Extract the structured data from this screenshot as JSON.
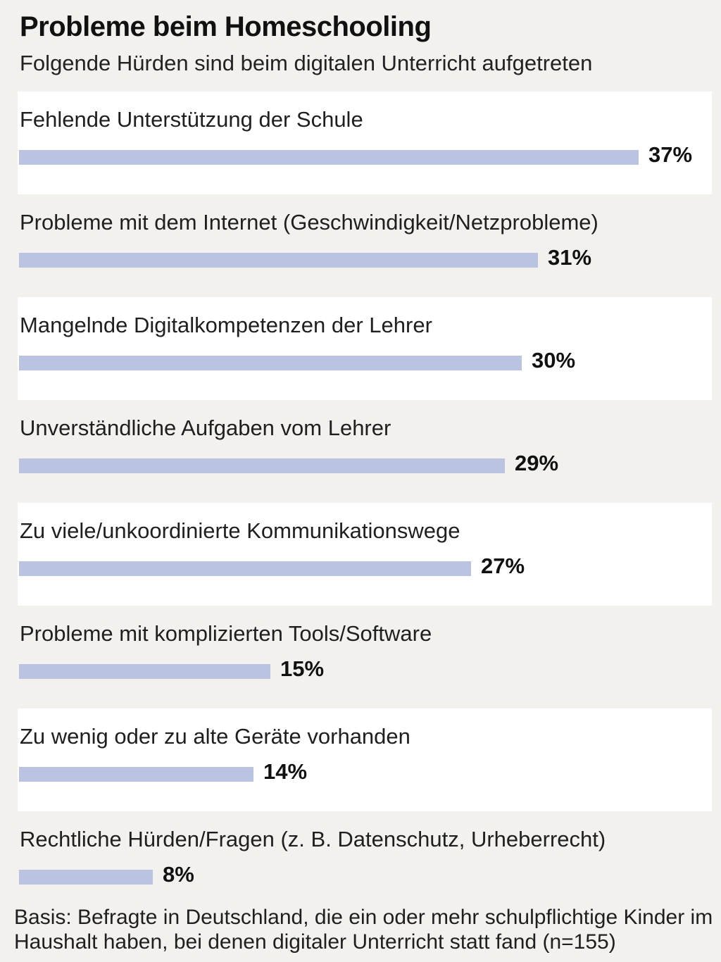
{
  "chart_data": {
    "type": "bar",
    "orientation": "horizontal",
    "title": "Probleme beim Homeschooling",
    "subtitle": "Folgende Hürden sind beim digitalen Unterricht aufgetreten",
    "categories": [
      "Fehlende Unterstützung der Schule",
      "Probleme mit dem Internet (Geschwindigkeit/Netzprobleme)",
      "Mangelnde Digitalkompetenzen der Lehrer",
      "Unverständliche Aufgaben vom Lehrer",
      "Zu viele/unkoordinierte Kommunikationswege",
      "Probleme mit komplizierten Tools/Software",
      "Zu wenig oder zu alte Geräte vorhanden",
      "Rechtliche Hürden/Fragen (z. B. Datenschutz, Urheberrecht)"
    ],
    "values": [
      37,
      31,
      30,
      29,
      27,
      15,
      14,
      8
    ],
    "value_labels": [
      "37%",
      "31%",
      "30%",
      "29%",
      "27%",
      "15%",
      "14%",
      "8%"
    ],
    "unit": "%",
    "bar_color": "#bac3e2",
    "grid": false,
    "footnote": "Basis: Befragte in Deutschland, die ein oder mehr schulpflichtige Kinder im Haushalt haben, bei denen digitaler Unterricht statt fand (n=155)"
  }
}
